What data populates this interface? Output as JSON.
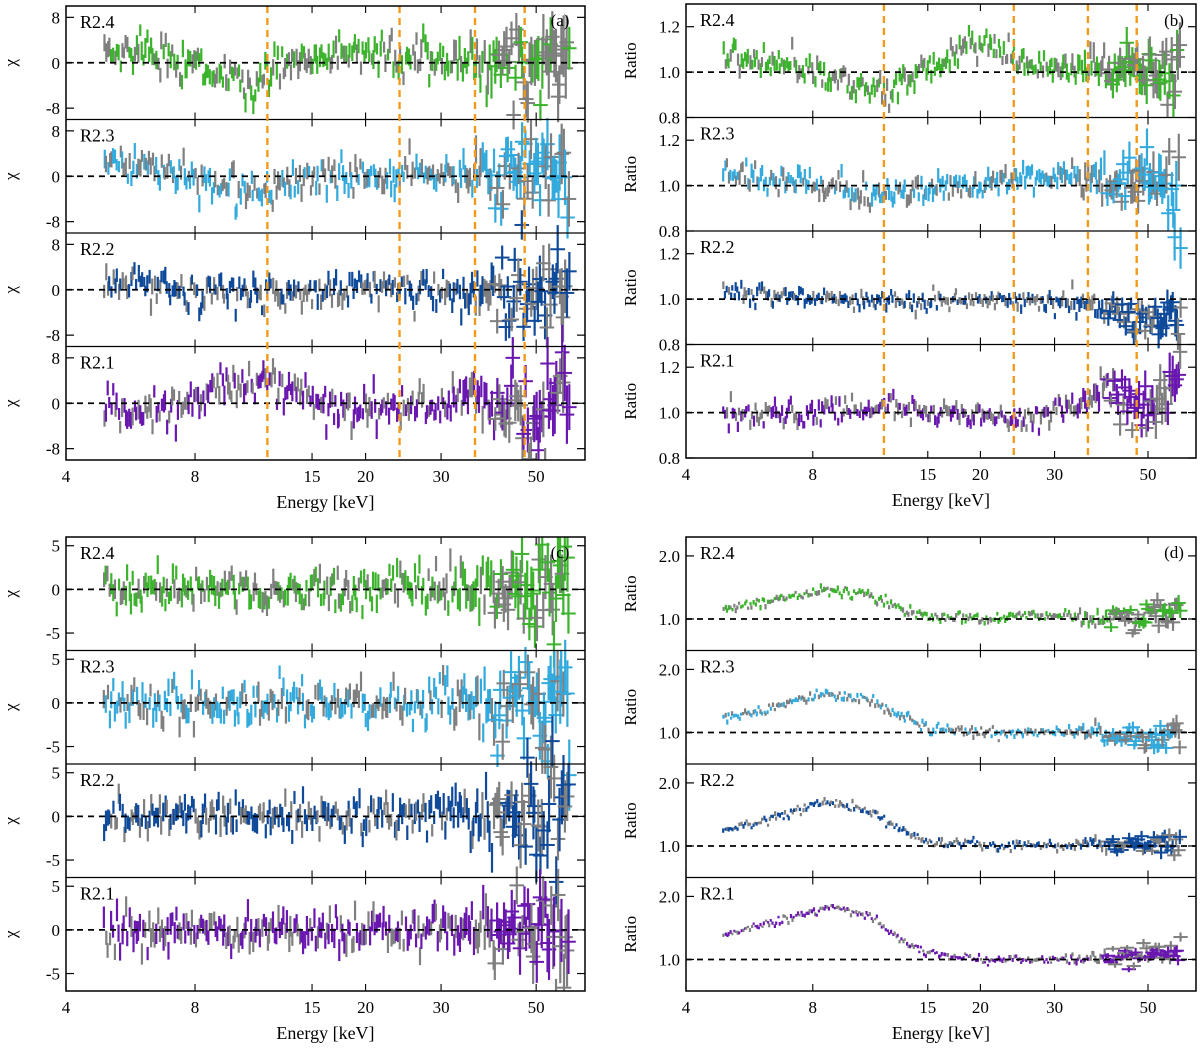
{
  "colors": {
    "gray": "#7f7f7f",
    "R2.4": "#3cb32c",
    "R2.3": "#33aadd",
    "R2.2": "#0f4a9a",
    "R2.1": "#6a17b0",
    "vline": "#f39a1c",
    "zero": "#000000"
  },
  "chart_data": [
    {
      "type": "scatter",
      "panel": "(a)",
      "xlabel": "Energy [keV]",
      "ylabel": "χ",
      "x_scale": "log",
      "xlim": [
        4,
        65
      ],
      "xticks": [
        4,
        8,
        15,
        20,
        30,
        50
      ],
      "xtick_labels": [
        "4",
        "8",
        "15",
        "20",
        "30",
        "50"
      ],
      "reference_lines_keV": [
        11.8,
        24,
        36,
        47
      ],
      "rows": [
        {
          "label": "R2.4",
          "ylim": [
            -10,
            10
          ],
          "yticks": [
            -8,
            0,
            8
          ],
          "ytick_labels": [
            "-8",
            "0",
            "8"
          ],
          "ref": 0,
          "profile": [
            [
              5,
              2
            ],
            [
              6,
              2.5
            ],
            [
              7,
              1.2
            ],
            [
              8.3,
              -1.5
            ],
            [
              10,
              -3.5
            ],
            [
              11.2,
              -3.5
            ],
            [
              13,
              -0.5
            ],
            [
              16,
              1.8
            ],
            [
              20,
              1.8
            ],
            [
              30,
              0.5
            ],
            [
              45,
              0
            ],
            [
              60,
              0
            ]
          ],
          "scatter": 1.6
        },
        {
          "label": "R2.3",
          "ylim": [
            -10,
            10
          ],
          "yticks": [
            -8,
            0,
            8
          ],
          "ytick_labels": [
            "-8",
            "0",
            "8"
          ],
          "ref": 0,
          "profile": [
            [
              5,
              2
            ],
            [
              7,
              1
            ],
            [
              9,
              -1.5
            ],
            [
              11,
              -2.5
            ],
            [
              14,
              -1
            ],
            [
              20,
              0.5
            ],
            [
              30,
              0.5
            ],
            [
              45,
              0
            ],
            [
              60,
              0
            ]
          ],
          "scatter": 1.5
        },
        {
          "label": "R2.2",
          "ylim": [
            -10,
            10
          ],
          "yticks": [
            -8,
            0,
            8
          ],
          "ytick_labels": [
            "-8",
            "0",
            "8"
          ],
          "ref": 0,
          "profile": [
            [
              5,
              1.5
            ],
            [
              8,
              0.5
            ],
            [
              11,
              -1
            ],
            [
              15,
              -0.5
            ],
            [
              20,
              0.5
            ],
            [
              30,
              -0.5
            ],
            [
              60,
              0
            ]
          ],
          "scatter": 1.4
        },
        {
          "label": "R2.1",
          "ylim": [
            -10,
            10
          ],
          "yticks": [
            -8,
            0,
            8
          ],
          "ytick_labels": [
            "-8",
            "0",
            "8"
          ],
          "ref": 0,
          "profile": [
            [
              5,
              -1.5
            ],
            [
              7,
              -1.5
            ],
            [
              9,
              2
            ],
            [
              11.5,
              4.5
            ],
            [
              14,
              1.5
            ],
            [
              17,
              -1
            ],
            [
              25,
              -1
            ],
            [
              35,
              1
            ],
            [
              45,
              -0.5
            ],
            [
              60,
              0.5
            ]
          ],
          "scatter": 1.6
        }
      ]
    },
    {
      "type": "scatter",
      "panel": "(b)",
      "xlabel": "Energy [keV]",
      "ylabel": "Ratio",
      "x_scale": "log",
      "xlim": [
        4,
        65
      ],
      "xticks": [
        4,
        8,
        15,
        20,
        30,
        50
      ],
      "xtick_labels": [
        "4",
        "8",
        "15",
        "20",
        "30",
        "50"
      ],
      "reference_lines_keV": [
        11.8,
        24,
        36,
        47
      ],
      "rows": [
        {
          "label": "R2.4",
          "ylim": [
            0.8,
            1.3
          ],
          "yticks": [
            0.8,
            1.0,
            1.2
          ],
          "ytick_labels": [
            "0.8",
            "1.0",
            "1.2"
          ],
          "ref": 1.0,
          "profile": [
            [
              5,
              1.08
            ],
            [
              7,
              1.03
            ],
            [
              9,
              0.97
            ],
            [
              11,
              0.92
            ],
            [
              12.5,
              0.92
            ],
            [
              15,
              1.02
            ],
            [
              19,
              1.12
            ],
            [
              25,
              1.05
            ],
            [
              35,
              1.0
            ],
            [
              50,
              1.02
            ],
            [
              60,
              1.0
            ]
          ],
          "scatter": 0.03
        },
        {
          "label": "R2.3",
          "ylim": [
            0.8,
            1.3
          ],
          "yticks": [
            0.8,
            1.0,
            1.2
          ],
          "ytick_labels": [
            "0.8",
            "1.0",
            "1.2"
          ],
          "ref": 1.0,
          "profile": [
            [
              5,
              1.06
            ],
            [
              8,
              1.0
            ],
            [
              11,
              0.96
            ],
            [
              14,
              0.97
            ],
            [
              20,
              1.0
            ],
            [
              30,
              1.05
            ],
            [
              40,
              1.0
            ],
            [
              50,
              1.05
            ],
            [
              60,
              1.0
            ]
          ],
          "scatter": 0.03
        },
        {
          "label": "R2.2",
          "ylim": [
            0.8,
            1.3
          ],
          "yticks": [
            0.8,
            1.0,
            1.2
          ],
          "ytick_labels": [
            "0.8",
            "1.0",
            "1.2"
          ],
          "ref": 1.0,
          "profile": [
            [
              5,
              1.03
            ],
            [
              8,
              1.01
            ],
            [
              12,
              0.98
            ],
            [
              18,
              1.0
            ],
            [
              25,
              0.99
            ],
            [
              35,
              0.98
            ],
            [
              45,
              0.93
            ],
            [
              55,
              0.92
            ]
          ],
          "scatter": 0.02
        },
        {
          "label": "R2.1",
          "ylim": [
            0.8,
            1.3
          ],
          "yticks": [
            0.8,
            1.0,
            1.2
          ],
          "ytick_labels": [
            "0.8",
            "1.0",
            "1.2"
          ],
          "ref": 1.0,
          "profile": [
            [
              5,
              0.98
            ],
            [
              10,
              1.01
            ],
            [
              12,
              1.03
            ],
            [
              15,
              1.0
            ],
            [
              25,
              0.97
            ],
            [
              35,
              1.05
            ],
            [
              40,
              1.12
            ],
            [
              50,
              1.0
            ],
            [
              60,
              1.2
            ]
          ],
          "scatter": 0.025
        }
      ]
    },
    {
      "type": "scatter",
      "panel": "(c)",
      "xlabel": "Energy [keV]",
      "ylabel": "χ",
      "x_scale": "log",
      "xlim": [
        4,
        65
      ],
      "xticks": [
        4,
        8,
        15,
        20,
        30,
        50
      ],
      "xtick_labels": [
        "4",
        "8",
        "15",
        "20",
        "30",
        "50"
      ],
      "reference_lines_keV": [],
      "rows": [
        {
          "label": "R2.4",
          "ylim": [
            -7,
            6
          ],
          "yticks": [
            -5,
            0,
            5
          ],
          "ytick_labels": [
            "-5",
            "0",
            "5"
          ],
          "ref": 0,
          "profile": [
            [
              5,
              0
            ],
            [
              60,
              0
            ]
          ],
          "scatter": 1.1
        },
        {
          "label": "R2.3",
          "ylim": [
            -7,
            6
          ],
          "yticks": [
            -5,
            0,
            5
          ],
          "ytick_labels": [
            "-5",
            "0",
            "5"
          ],
          "ref": 0,
          "profile": [
            [
              5,
              0
            ],
            [
              60,
              0
            ]
          ],
          "scatter": 1.1
        },
        {
          "label": "R2.2",
          "ylim": [
            -7,
            6
          ],
          "yticks": [
            -5,
            0,
            5
          ],
          "ytick_labels": [
            "-5",
            "0",
            "5"
          ],
          "ref": 0,
          "profile": [
            [
              5,
              0
            ],
            [
              60,
              0
            ]
          ],
          "scatter": 1.1
        },
        {
          "label": "R2.1",
          "ylim": [
            -7,
            6
          ],
          "yticks": [
            -5,
            0,
            5
          ],
          "ytick_labels": [
            "-5",
            "0",
            "5"
          ],
          "ref": 0,
          "profile": [
            [
              5,
              0
            ],
            [
              60,
              0
            ]
          ],
          "scatter": 1.2
        }
      ]
    },
    {
      "type": "scatter",
      "panel": "(d)",
      "xlabel": "Energy [keV]",
      "ylabel": "Ratio",
      "x_scale": "log",
      "xlim": [
        4,
        65
      ],
      "xticks": [
        4,
        8,
        15,
        20,
        30,
        50
      ],
      "xtick_labels": [
        "4",
        "8",
        "15",
        "20",
        "30",
        "50"
      ],
      "reference_lines_keV": [],
      "rows": [
        {
          "label": "R2.4",
          "ylim": [
            0.5,
            2.3
          ],
          "yticks": [
            1.0,
            2.0
          ],
          "ytick_labels": [
            "1.0",
            "2.0"
          ],
          "ref": 1.0,
          "profile": [
            [
              5,
              1.15
            ],
            [
              6.5,
              1.3
            ],
            [
              8.5,
              1.45
            ],
            [
              10.5,
              1.4
            ],
            [
              13,
              1.15
            ],
            [
              15,
              1.03
            ],
            [
              20,
              1.0
            ],
            [
              30,
              1.05
            ],
            [
              45,
              1.0
            ],
            [
              55,
              1.15
            ]
          ],
          "scatter": 0.04
        },
        {
          "label": "R2.3",
          "ylim": [
            0.5,
            2.3
          ],
          "yticks": [
            1.0,
            2.0
          ],
          "ytick_labels": [
            "1.0",
            "2.0"
          ],
          "ref": 1.0,
          "profile": [
            [
              5,
              1.25
            ],
            [
              6.5,
              1.4
            ],
            [
              8.5,
              1.6
            ],
            [
              10.5,
              1.55
            ],
            [
              13,
              1.25
            ],
            [
              15,
              1.08
            ],
            [
              20,
              1.0
            ],
            [
              30,
              1.02
            ],
            [
              40,
              1.0
            ],
            [
              50,
              0.9
            ],
            [
              58,
              1.0
            ]
          ],
          "scatter": 0.04
        },
        {
          "label": "R2.2",
          "ylim": [
            0.5,
            2.3
          ],
          "yticks": [
            1.0,
            2.0
          ],
          "ytick_labels": [
            "1.0",
            "2.0"
          ],
          "ref": 1.0,
          "profile": [
            [
              5,
              1.25
            ],
            [
              6.5,
              1.45
            ],
            [
              8.5,
              1.7
            ],
            [
              10.5,
              1.6
            ],
            [
              13,
              1.25
            ],
            [
              15,
              1.06
            ],
            [
              20,
              1.0
            ],
            [
              30,
              1.02
            ],
            [
              45,
              1.0
            ],
            [
              55,
              1.05
            ]
          ],
          "scatter": 0.035
        },
        {
          "label": "R2.1",
          "ylim": [
            0.5,
            2.3
          ],
          "yticks": [
            1.0,
            2.0
          ],
          "ytick_labels": [
            "1.0",
            "2.0"
          ],
          "ref": 1.0,
          "profile": [
            [
              5,
              1.4
            ],
            [
              6.5,
              1.6
            ],
            [
              9,
              1.85
            ],
            [
              11,
              1.65
            ],
            [
              13,
              1.3
            ],
            [
              15,
              1.1
            ],
            [
              20,
              1.0
            ],
            [
              30,
              1.0
            ],
            [
              45,
              1.05
            ],
            [
              55,
              1.1
            ],
            [
              60,
              1.2
            ]
          ],
          "scatter": 0.03
        }
      ]
    }
  ]
}
